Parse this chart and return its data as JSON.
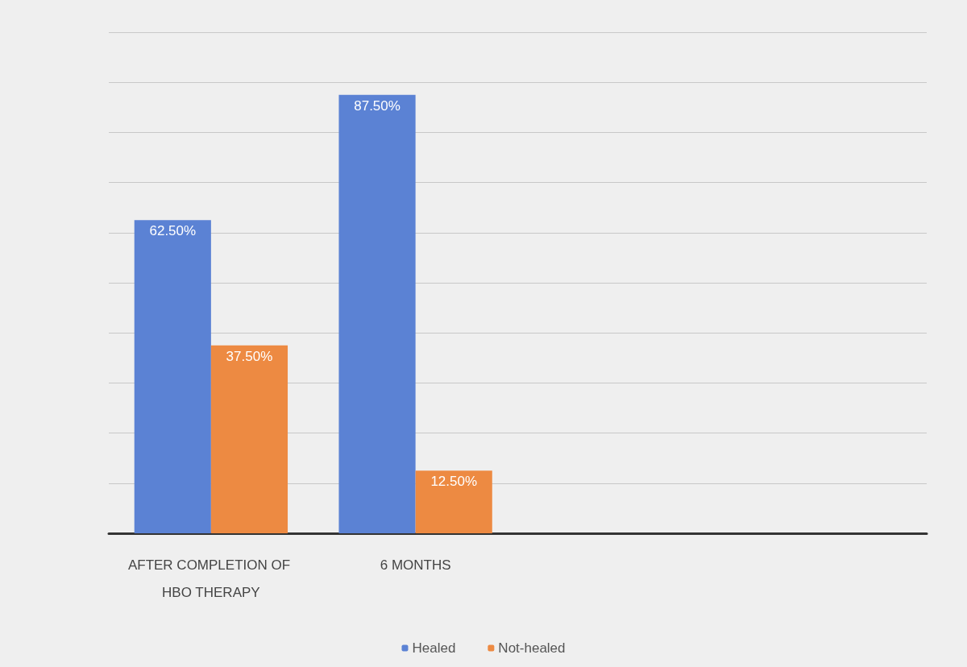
{
  "chart_data": {
    "type": "bar",
    "categories": [
      "AFTER COMPLETION OF HBO THERAPY",
      "6 MONTHS",
      null,
      null
    ],
    "series": [
      {
        "name": "Healed",
        "color": "#5b82d4",
        "values": [
          62.5,
          87.5,
          null,
          null
        ],
        "value_labels": [
          "62.50%",
          "87.50%",
          null,
          null
        ]
      },
      {
        "name": "Not-healed",
        "color": "#ed8a42",
        "values": [
          37.5,
          12.5,
          null,
          null
        ],
        "value_labels": [
          "37.50%",
          "12.50%",
          null,
          null
        ]
      }
    ],
    "ylim": [
      0,
      100
    ],
    "yticks": [
      {
        "value": 0,
        "label": null
      },
      {
        "value": 10,
        "label": null
      },
      {
        "value": 20,
        "label": null
      },
      {
        "value": 30,
        "label": null
      },
      {
        "value": 40,
        "label": null
      },
      {
        "value": 50,
        "label": null
      },
      {
        "value": 60,
        "label": null
      },
      {
        "value": 70,
        "label": null
      },
      {
        "value": 80,
        "label": null
      },
      {
        "value": 90,
        "label": null
      },
      {
        "value": 100,
        "label": null
      }
    ],
    "tick_labels": "x",
    "grid": "y",
    "legend": "bottom"
  }
}
